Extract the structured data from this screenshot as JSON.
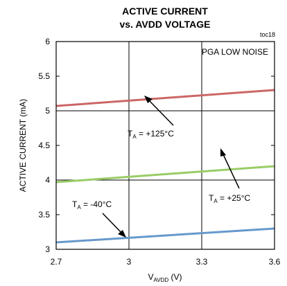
{
  "chart_data": {
    "type": "line",
    "title_line1": "ACTIVE CURRENT",
    "title_line2": "vs. AVDD VOLTAGE",
    "figure_id": "toc18",
    "condition_label": "PGA LOW NOISE",
    "xlabel_main": "V",
    "xlabel_sub": "AVDD",
    "xlabel_unit": " (V)",
    "ylabel": "ACTIVE CURRENT (mA)",
    "xlim": [
      2.7,
      3.6
    ],
    "ylim": [
      3,
      6
    ],
    "x_ticks": [
      "2.7",
      "3",
      "3.3",
      "3.6"
    ],
    "y_ticks": [
      "3",
      "3.5",
      "4",
      "4.5",
      "5",
      "5.5",
      "6"
    ],
    "grid": true,
    "series": [
      {
        "name_main": "T",
        "name_sub": "A",
        "name_rest": " = +125°C",
        "color": "#cc6666",
        "x": [
          2.7,
          3.6
        ],
        "y": [
          5.07,
          5.3
        ]
      },
      {
        "name_main": "T",
        "name_sub": "A",
        "name_rest": " = +25°C",
        "color": "#99cc66",
        "x": [
          2.7,
          3.6
        ],
        "y": [
          3.97,
          4.2
        ]
      },
      {
        "name_main": "T",
        "name_sub": "A",
        "name_rest": " = -40°C",
        "color": "#6699cc",
        "x": [
          2.7,
          3.6
        ],
        "y": [
          3.1,
          3.3
        ]
      }
    ]
  }
}
